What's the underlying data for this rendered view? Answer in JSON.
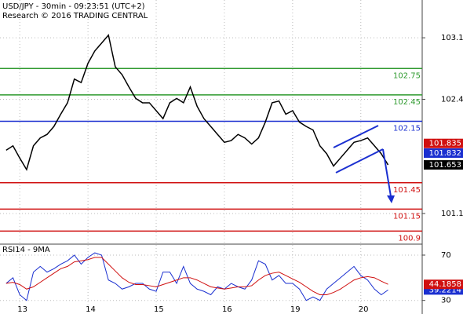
{
  "chart_data": [
    {
      "type": "line",
      "title": "USD/JPY - 30min - 09:23:51 (UTC+2)",
      "subtitle": "Research © 2016 TRADING CENTRAL",
      "x": [
        -0.2,
        -0.1,
        0,
        0.1,
        0.2,
        0.3,
        0.4,
        0.5,
        0.6,
        0.7,
        0.8,
        0.9,
        1,
        1.1,
        1.2,
        1.3,
        1.4,
        1.5,
        1.6,
        1.7,
        1.8,
        1.9,
        2,
        2.1,
        2.2,
        2.3,
        2.4,
        2.5,
        2.6,
        2.7,
        2.8,
        2.9,
        3,
        3.1,
        3.2,
        3.3,
        3.4,
        3.5,
        3.6,
        3.7,
        3.8,
        3.9,
        4,
        4.1,
        4.2,
        4.3,
        4.4,
        4.5,
        4.6,
        4.7,
        4.8,
        4.9,
        5,
        5.1,
        5.2,
        5.3,
        5.4
      ],
      "xlim": [
        -0.29,
        5.9
      ],
      "series": [
        {
          "color": "#000000",
          "values": [
            101.82,
            101.87,
            101.73,
            101.6,
            101.87,
            101.96,
            102.0,
            102.09,
            102.23,
            102.36,
            102.63,
            102.59,
            102.81,
            102.95,
            103.04,
            103.13,
            102.77,
            102.68,
            102.54,
            102.41,
            102.36,
            102.36,
            102.27,
            102.18,
            102.36,
            102.41,
            102.36,
            102.54,
            102.32,
            102.18,
            102.09,
            102.0,
            101.91,
            101.93,
            102.0,
            101.96,
            101.89,
            101.96,
            102.14,
            102.36,
            102.38,
            102.23,
            102.27,
            102.14,
            102.09,
            102.05,
            101.87,
            101.78,
            101.64,
            101.73,
            101.82,
            101.91,
            101.93,
            101.96,
            101.87,
            101.78,
            101.653
          ]
        }
      ],
      "ylim": [
        100.76,
        103.53
      ],
      "yticks": [
        103.1,
        102.4,
        101.1
      ],
      "levels": [
        {
          "value": 102.75,
          "color": "#2e9a2e"
        },
        {
          "value": 102.45,
          "color": "#2e9a2e"
        },
        {
          "value": 102.15,
          "color": "#1a2fd0"
        },
        {
          "value": 101.45,
          "color": "#d01010"
        },
        {
          "value": 101.15,
          "color": "#d01010"
        },
        {
          "value": 100.9,
          "color": "#d01010"
        }
      ],
      "tags": [
        {
          "value": 101.835,
          "color": "#d01010"
        },
        {
          "value": 101.832,
          "color": "#1a2fd0"
        }
      ]
    },
    {
      "type": "line",
      "title": "RSI14 - 9MA",
      "x": [
        -0.2,
        -0.1,
        0,
        0.1,
        0.2,
        0.3,
        0.4,
        0.5,
        0.6,
        0.7,
        0.8,
        0.9,
        1,
        1.1,
        1.2,
        1.3,
        1.4,
        1.5,
        1.6,
        1.7,
        1.8,
        1.9,
        2,
        2.1,
        2.2,
        2.3,
        2.4,
        2.5,
        2.6,
        2.7,
        2.8,
        2.9,
        3,
        3.1,
        3.2,
        3.3,
        3.4,
        3.5,
        3.6,
        3.7,
        3.8,
        3.9,
        4,
        4.1,
        4.2,
        4.3,
        4.4,
        4.5,
        4.6,
        4.7,
        4.8,
        4.9,
        5,
        5.1,
        5.2,
        5.3,
        5.4
      ],
      "xlim": [
        -0.29,
        5.9
      ],
      "xticks": [
        {
          "value": 0,
          "label": "13"
        },
        {
          "value": 1,
          "label": "14"
        },
        {
          "value": 2,
          "label": "15"
        },
        {
          "value": 3,
          "label": "16"
        },
        {
          "value": 4,
          "label": "19"
        },
        {
          "value": 5,
          "label": "20"
        }
      ],
      "series": [
        {
          "color": "#1a2fd0",
          "values": [
            45,
            50,
            35,
            30,
            55,
            60,
            55,
            58,
            62,
            65,
            70,
            62,
            68,
            72,
            70,
            48,
            45,
            40,
            42,
            45,
            45,
            40,
            38,
            55,
            55,
            45,
            60,
            45,
            40,
            38,
            35,
            42,
            40,
            45,
            42,
            40,
            48,
            65,
            62,
            48,
            52,
            45,
            45,
            40,
            30,
            33,
            30,
            40,
            45,
            50,
            55,
            60,
            52,
            48,
            40,
            35,
            39.2214
          ]
        },
        {
          "color": "#d01010",
          "values": [
            45,
            46,
            44,
            40,
            42,
            46,
            50,
            54,
            58,
            60,
            64,
            65,
            66,
            68,
            68,
            62,
            56,
            50,
            46,
            44,
            44,
            43,
            42,
            44,
            46,
            48,
            50,
            50,
            48,
            45,
            42,
            41,
            40,
            41,
            42,
            42,
            43,
            48,
            52,
            54,
            55,
            52,
            49,
            46,
            42,
            38,
            35,
            35,
            37,
            40,
            44,
            48,
            50,
            51,
            50,
            47,
            44.1858
          ]
        }
      ],
      "ylim": [
        18,
        79
      ],
      "yticks": [
        70,
        30
      ]
    }
  ]
}
